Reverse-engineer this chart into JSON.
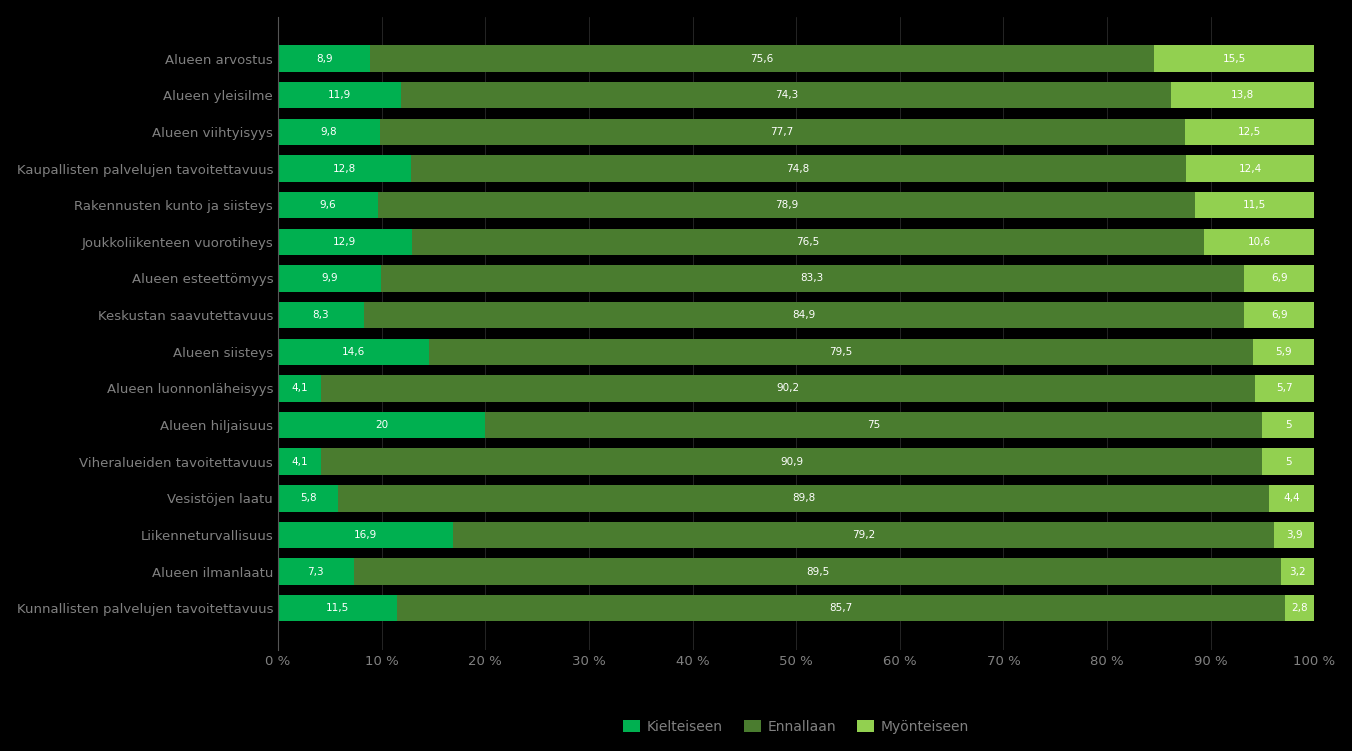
{
  "categories": [
    "Alueen arvostus",
    "Alueen yleisilme",
    "Alueen viihtyisyys",
    "Kaupallisten palvelujen tavoitettavuus",
    "Rakennusten kunto ja siisteys",
    "Joukkoliikenteen vuorotiheys",
    "Alueen esteettömyys",
    "Keskustan saavutettavuus",
    "Alueen siisteys",
    "Alueen luonnonläheisyys",
    "Alueen hiljaisuus",
    "Viheralueiden tavoitettavuus",
    "Vesistöjen laatu",
    "Liikenneturvallisuus",
    "Alueen ilmanlaatu",
    "Kunnallisten palvelujen tavoitettavuus"
  ],
  "kielteiseen": [
    8.9,
    11.9,
    9.8,
    12.8,
    9.6,
    12.9,
    9.9,
    8.3,
    14.6,
    4.1,
    20.0,
    4.1,
    5.8,
    16.9,
    7.3,
    11.5
  ],
  "ennallaan": [
    75.6,
    74.3,
    77.7,
    74.8,
    78.9,
    76.5,
    83.3,
    84.9,
    79.5,
    90.2,
    75.0,
    90.9,
    89.8,
    79.2,
    89.5,
    85.7
  ],
  "myonteiseen": [
    15.5,
    13.8,
    12.5,
    12.4,
    11.5,
    10.6,
    6.9,
    6.9,
    5.9,
    5.7,
    5.0,
    5.0,
    4.4,
    3.9,
    3.2,
    2.8
  ],
  "color_kielteiseen": "#00b050",
  "color_ennallaan": "#4a7c2f",
  "color_myonteiseen": "#92d050",
  "background_color": "#000000",
  "text_color": "#808080",
  "bar_label_color": "#ffffff",
  "label_kielteiseen": "Kielteiseen",
  "label_ennallaan": "Ennallaan",
  "label_myonteiseen": "Myönteiseen",
  "xlabel_ticks": [
    "0 %",
    "10 %",
    "20 %",
    "30 %",
    "40 %",
    "50 %",
    "60 %",
    "70 %",
    "80 %",
    "90 %",
    "100 %"
  ],
  "xlabel_values": [
    0,
    10,
    20,
    30,
    40,
    50,
    60,
    70,
    80,
    90,
    100
  ]
}
